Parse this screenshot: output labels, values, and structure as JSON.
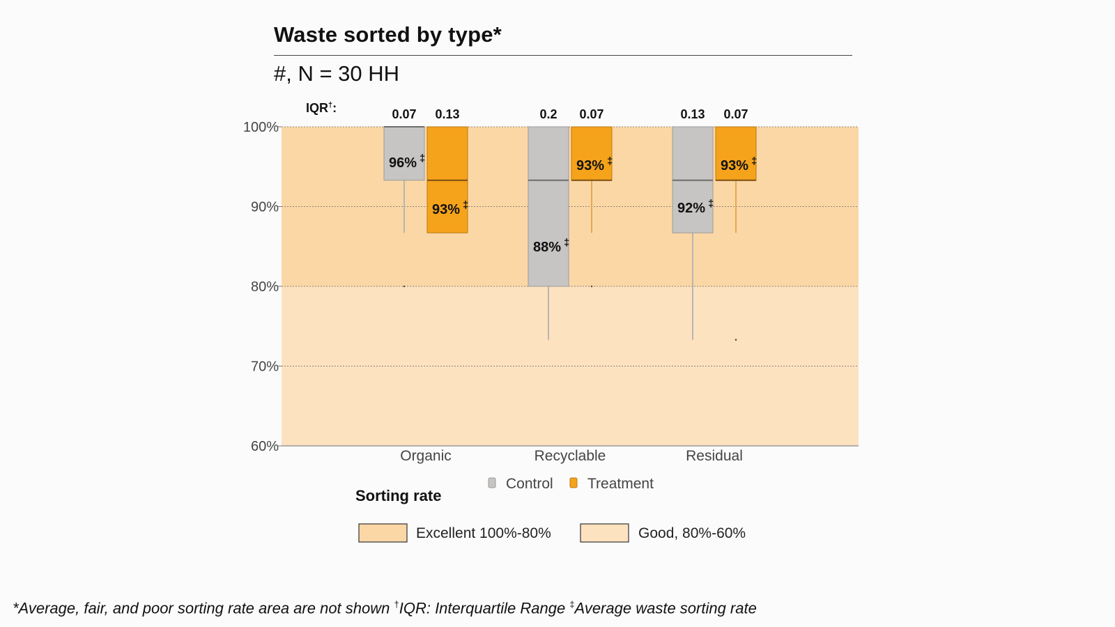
{
  "header": {
    "title": "Waste sorted by type*",
    "subtitle": "#, N = 30 HH",
    "iqr_label": "IQR",
    "iqr_mark": "†",
    "iqr_colon": ":"
  },
  "chart_data": {
    "type": "box",
    "ylim": [
      0.6,
      1.0
    ],
    "y_ticks": [
      "100%",
      "90%",
      "80%",
      "70%",
      "60%"
    ],
    "y_tick_values": [
      1.0,
      0.9,
      0.8,
      0.7,
      0.6
    ],
    "grid": "horizontal-dotted",
    "categories": [
      "Organic",
      "Recyclable",
      "Residual"
    ],
    "series": [
      {
        "name": "Control",
        "color": "#c7c5c3",
        "boxes": [
          {
            "q1": 0.933,
            "median": 1.0,
            "q3": 1.0,
            "whisker_low": 0.867,
            "whisker_high": 1.0,
            "outliers": [
              0.8
            ],
            "mean_label": "96%",
            "iqr": "0.07"
          },
          {
            "q1": 0.8,
            "median": 0.933,
            "q3": 1.0,
            "whisker_low": 0.733,
            "whisker_high": 1.0,
            "outliers": [],
            "mean_label": "88%",
            "iqr": "0.2"
          },
          {
            "q1": 0.867,
            "median": 0.933,
            "q3": 1.0,
            "whisker_low": 0.733,
            "whisker_high": 1.0,
            "outliers": [],
            "mean_label": "92%",
            "iqr": "0.13"
          }
        ]
      },
      {
        "name": "Treatment",
        "color": "#f5a31a",
        "boxes": [
          {
            "q1": 0.867,
            "median": 0.933,
            "q3": 1.0,
            "whisker_low": 0.867,
            "whisker_high": 1.0,
            "outliers": [],
            "mean_label": "93%",
            "iqr": "0.13"
          },
          {
            "q1": 0.933,
            "median": 0.933,
            "q3": 1.0,
            "whisker_low": 0.867,
            "whisker_high": 1.0,
            "outliers": [
              0.8
            ],
            "mean_label": "93%",
            "iqr": "0.07"
          },
          {
            "q1": 0.933,
            "median": 0.933,
            "q3": 1.0,
            "whisker_low": 0.867,
            "whisker_high": 1.0,
            "outliers": [
              0.733
            ],
            "mean_label": "93%",
            "iqr": "0.07"
          }
        ]
      }
    ],
    "mean_mark": "‡",
    "bands": [
      {
        "from": 0.8,
        "to": 1.0,
        "label": "Excellent 100%-80%",
        "color": "#fbd7a6"
      },
      {
        "from": 0.6,
        "to": 0.8,
        "label": "Good, 80%-60%",
        "color": "#fde2bf"
      }
    ],
    "legend": {
      "placement": "bottom",
      "title": "Sorting rate"
    }
  },
  "footnote": {
    "part1": "*Average, fair, and poor sorting rate area are not shown ",
    "mark2": "†",
    "part2": "IQR: Interquartile Range ",
    "mark3": "‡",
    "part3": "Average waste sorting rate"
  }
}
